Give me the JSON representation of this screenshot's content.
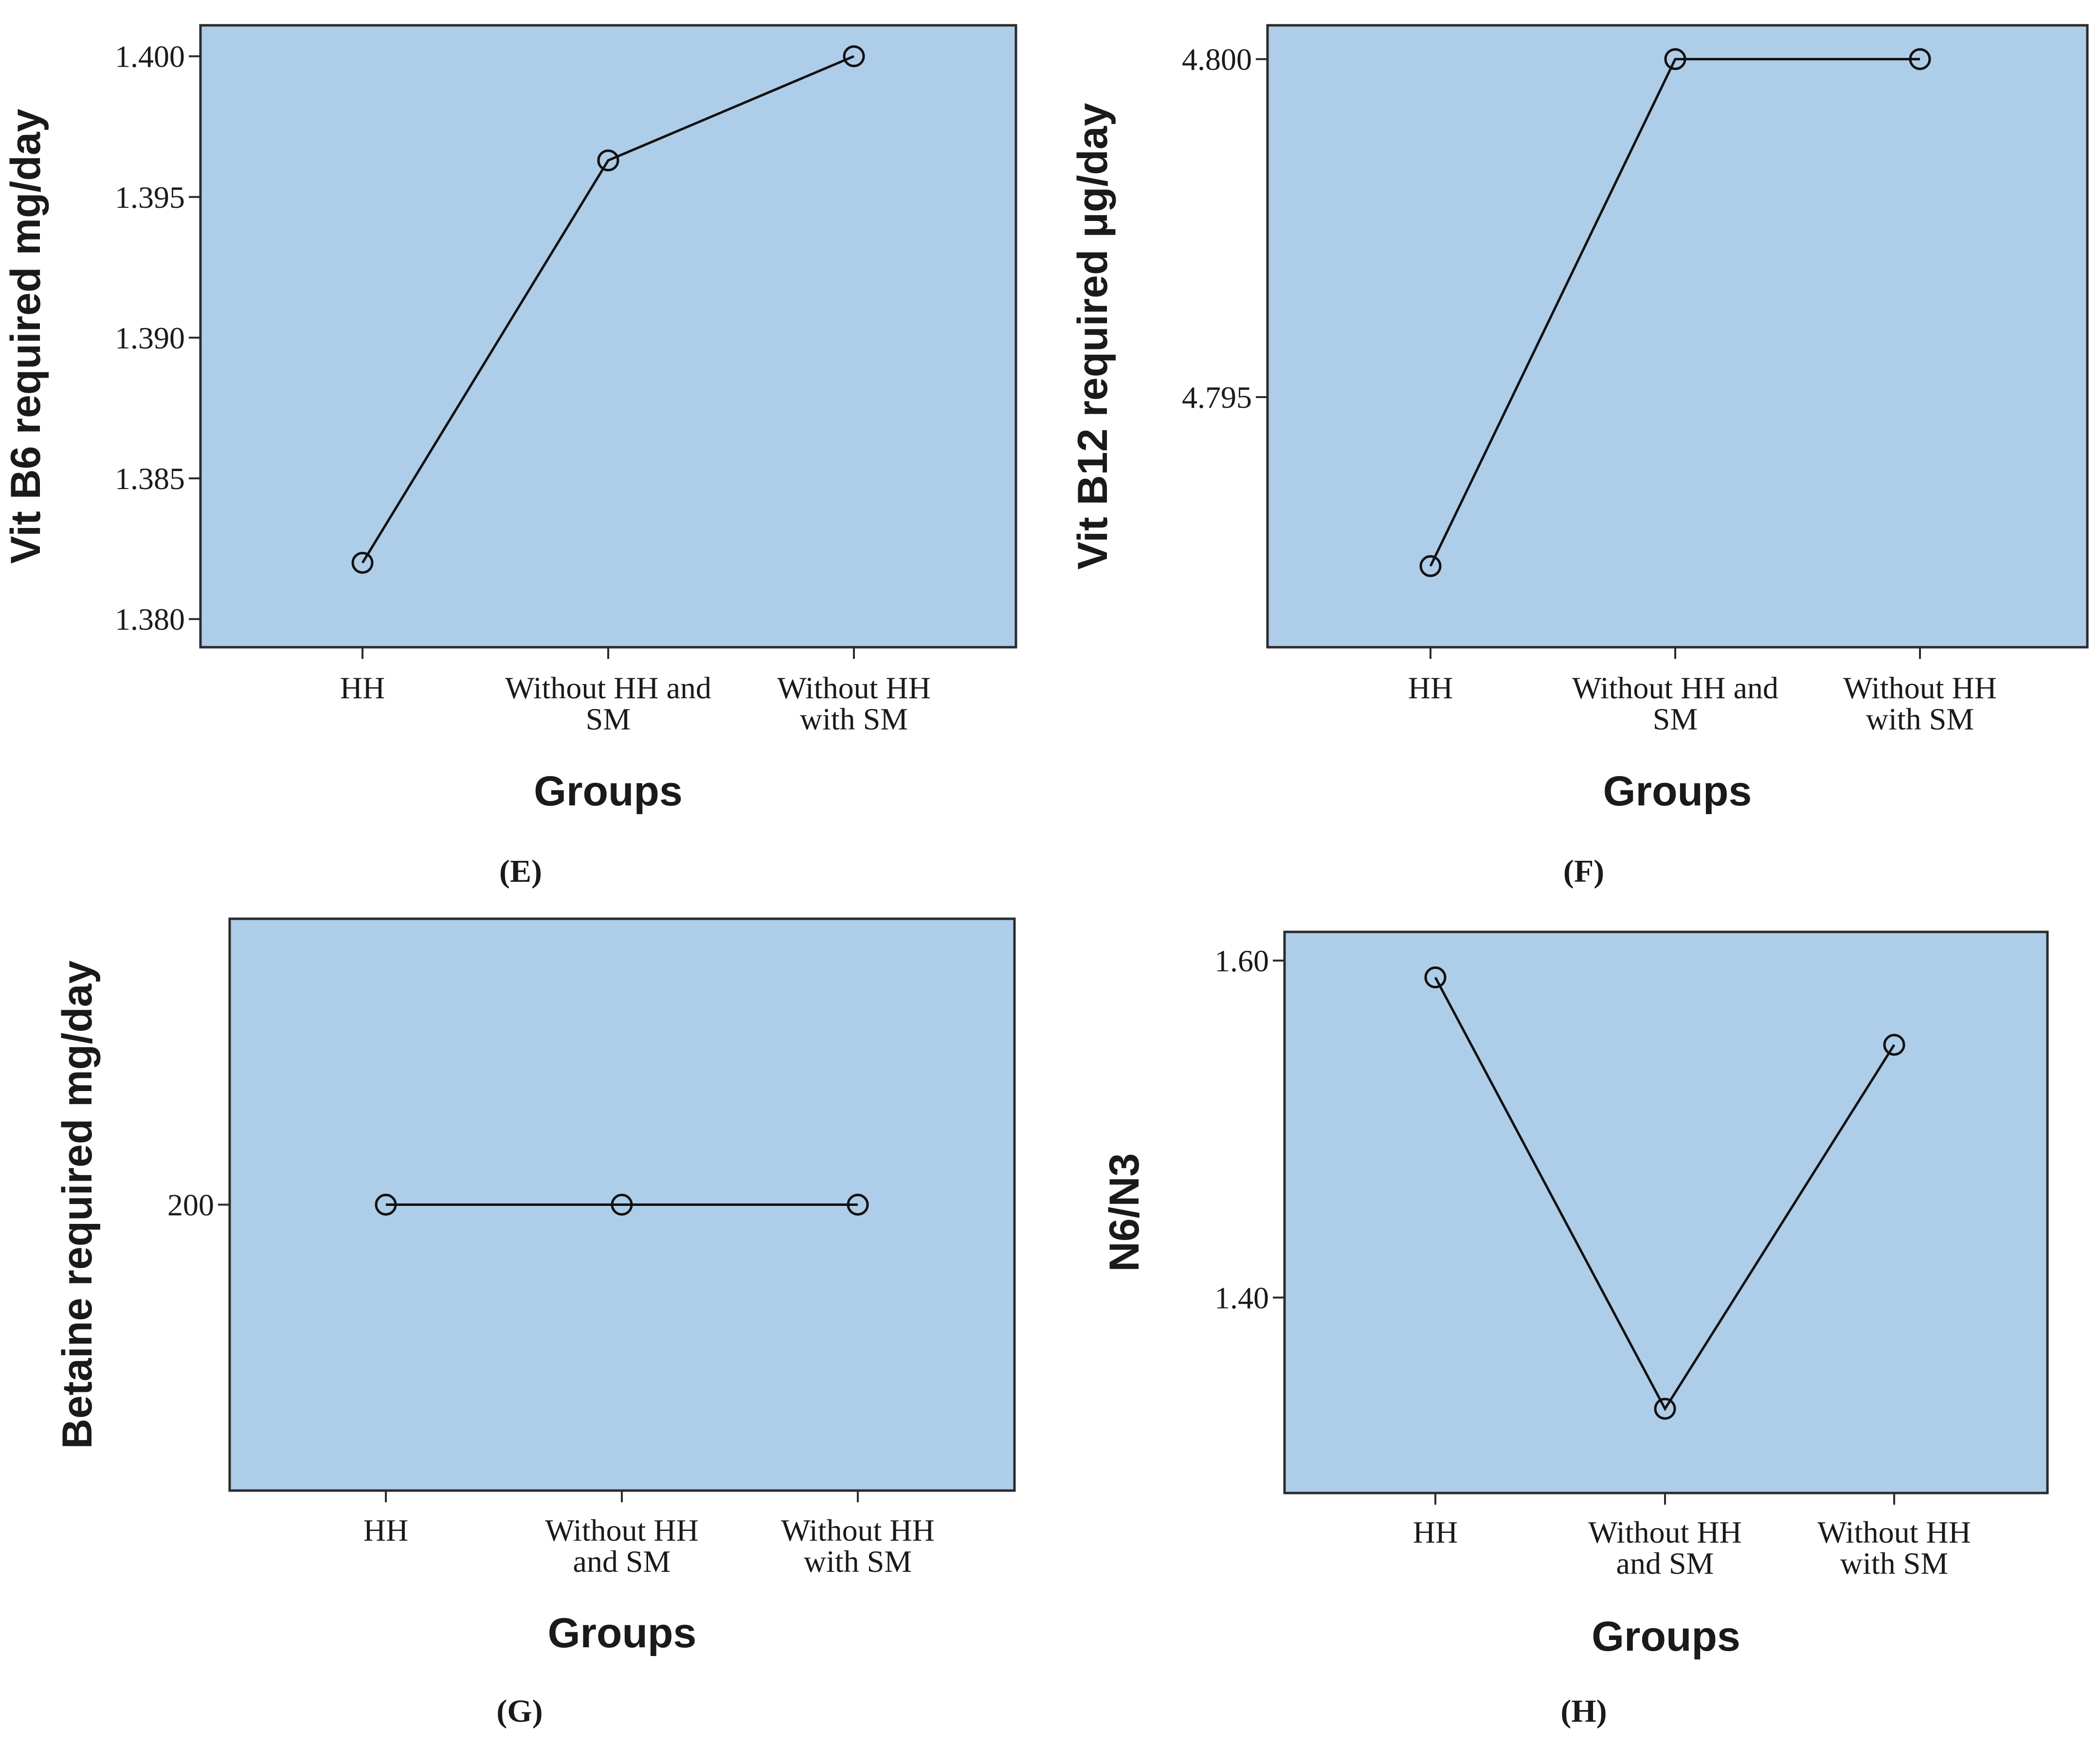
{
  "chart_data": [
    {
      "type": "line",
      "panel": "(E)",
      "xlabel": "Groups",
      "ylabel": "Vit B6 required mg/day",
      "categories": [
        [
          "HH"
        ],
        [
          "Without HH and",
          "SM"
        ],
        [
          "Without HH",
          "with SM"
        ]
      ],
      "values": [
        1.382,
        1.3963,
        1.4
      ],
      "yticks": [
        1.38,
        1.385,
        1.39,
        1.395,
        1.4
      ],
      "ytick_labels": [
        "1.380",
        "1.385",
        "1.390",
        "1.395",
        "1.400"
      ],
      "ylim": [
        1.379,
        1.4011
      ],
      "grid": false
    },
    {
      "type": "line",
      "panel": "(F)",
      "xlabel": "Groups",
      "ylabel": "Vit B12 required μg/day",
      "categories": [
        [
          "HH"
        ],
        [
          "Without HH and",
          "SM"
        ],
        [
          "Without HH",
          "with SM"
        ]
      ],
      "values": [
        4.7925,
        4.8,
        4.8
      ],
      "yticks": [
        4.795,
        4.8
      ],
      "ytick_labels": [
        "4.795",
        "4.800"
      ],
      "ylim": [
        4.7913,
        4.8005
      ],
      "grid": false
    },
    {
      "type": "line",
      "panel": "(G)",
      "xlabel": "Groups",
      "ylabel": "Betaine required mg/day",
      "categories": [
        [
          "HH"
        ],
        [
          "Without HH",
          "and SM"
        ],
        [
          "Without HH",
          "with SM"
        ]
      ],
      "values": [
        200,
        200,
        200
      ],
      "yticks": [
        200
      ],
      "ytick_labels": [
        "200"
      ],
      "ylim": [
        199.5,
        200.5
      ],
      "grid": false
    },
    {
      "type": "line",
      "panel": "(H)",
      "xlabel": "Groups",
      "ylabel": "N6/N3",
      "categories": [
        [
          "HH"
        ],
        [
          "Without HH",
          "and SM"
        ],
        [
          "Without HH",
          "with SM"
        ]
      ],
      "values": [
        1.59,
        1.334,
        1.55
      ],
      "yticks": [
        1.4,
        1.6
      ],
      "ytick_labels": [
        "1.40",
        "1.60"
      ],
      "ylim": [
        1.284,
        1.617
      ],
      "grid": false
    }
  ]
}
